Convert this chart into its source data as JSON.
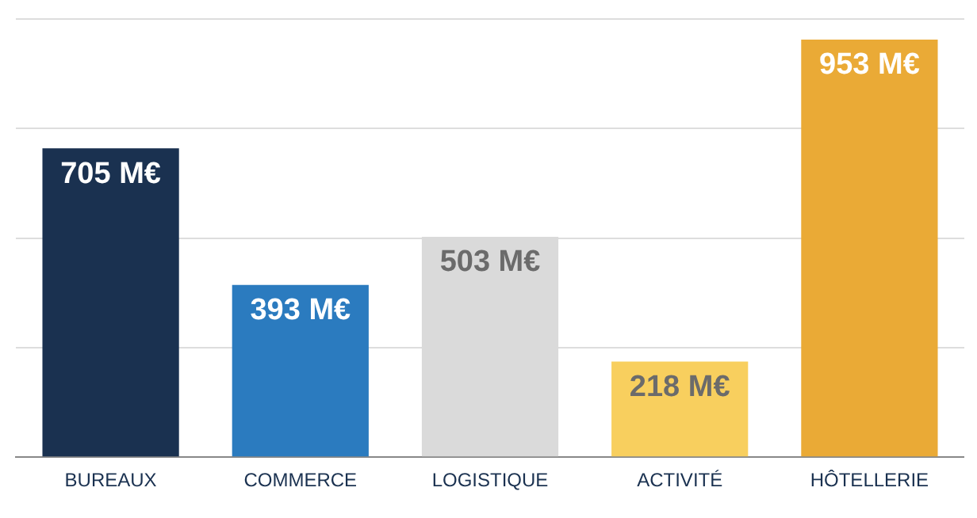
{
  "chart_data": {
    "type": "bar",
    "categories": [
      "BUREAUX",
      "COMMERCE",
      "LOGISTIQUE",
      "ACTIVITÉ",
      "HÔTELLERIE"
    ],
    "values": [
      705,
      393,
      503,
      218,
      953
    ],
    "value_labels": [
      "705 M€",
      "393 M€",
      "503 M€",
      "218 M€",
      "953 M€"
    ],
    "colors": [
      "#1a3150",
      "#2b7bbf",
      "#dadada",
      "#f8cf5e",
      "#eaaa36"
    ],
    "ylim": [
      0,
      1000
    ],
    "yticks": [
      {
        "value": 0,
        "label": null
      },
      {
        "value": 250,
        "label": null
      },
      {
        "value": 500,
        "label": null
      },
      {
        "value": 750,
        "label": null
      },
      {
        "value": 1000,
        "label": null
      }
    ],
    "grid": "y",
    "tick_labels": "x"
  }
}
